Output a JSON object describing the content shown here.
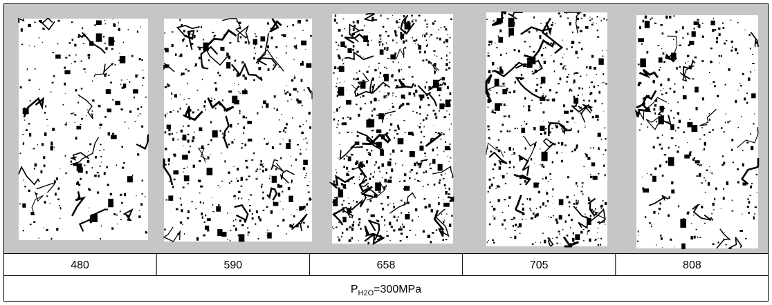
{
  "table": {
    "columns": [
      480,
      590,
      658,
      705,
      808
    ]
  },
  "caption": {
    "base": "P",
    "subscript": "H2O",
    "rest": "=300MPa"
  }
}
